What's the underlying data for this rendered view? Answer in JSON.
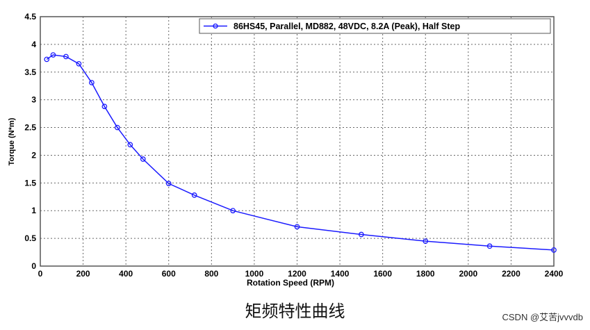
{
  "chart_data": {
    "type": "line",
    "title": "",
    "xlabel": "Rotation Speed (RPM)",
    "ylabel": "Torque (N*m)",
    "xlim": [
      0,
      2400
    ],
    "ylim": [
      0,
      4.5
    ],
    "xticks": [
      0,
      200,
      400,
      600,
      800,
      1000,
      1200,
      1400,
      1600,
      1800,
      2000,
      2200,
      2400
    ],
    "yticks": [
      0,
      0.5,
      1,
      1.5,
      2,
      2.5,
      3,
      3.5,
      4,
      4.5
    ],
    "grid": true,
    "legend_placement": "top-right",
    "series": [
      {
        "name": "86HS45, Parallel, MD882, 48VDC, 8.2A (Peak), Half Step",
        "color": "#1a1aff",
        "marker": "circle",
        "x": [
          30,
          60,
          120,
          180,
          240,
          300,
          360,
          420,
          480,
          600,
          720,
          900,
          1200,
          1500,
          1800,
          2100,
          2400
        ],
        "y": [
          3.73,
          3.81,
          3.78,
          3.65,
          3.31,
          2.88,
          2.5,
          2.19,
          1.93,
          1.49,
          1.28,
          1.0,
          0.71,
          0.57,
          0.45,
          0.36,
          0.29
        ]
      }
    ]
  },
  "caption": "矩频特性曲线",
  "watermark": "CSDN @艾苦jvvvdb"
}
